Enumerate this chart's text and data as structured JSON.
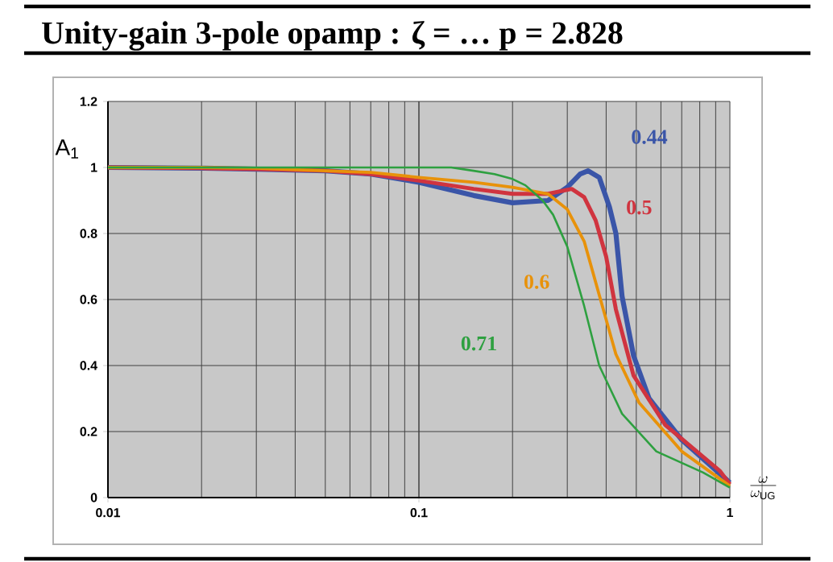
{
  "chart_data": {
    "type": "line",
    "title": "Unity-gain 3-pole opamp : ζ = …   p = 2.828",
    "ylabel": "A$_{1}$",
    "xlabel": "\\frac{\\omega}{\\omega_{\\mathrm{UG}}}",
    "log": "x",
    "grid": true,
    "xlim": [
      0.01,
      1
    ],
    "xticks": [
      0.01,
      0.1,
      1
    ],
    "ylim": [
      0,
      1.2
    ],
    "yticks": [
      0,
      0.2,
      0.4,
      0.6,
      0.8,
      1,
      1.2
    ],
    "series": [
      {
        "name": "0.44",
        "color": "#3a55a8",
        "x": [
          0.01,
          0.02,
          0.03,
          0.05,
          0.07,
          0.1,
          0.15,
          0.2,
          0.26,
          0.3,
          0.33,
          0.35,
          0.38,
          0.41,
          0.43,
          0.45,
          0.49,
          0.55,
          0.7,
          0.96,
          1
        ],
        "values": [
          1.0,
          0.998,
          0.995,
          0.99,
          0.98,
          0.955,
          0.915,
          0.893,
          0.9,
          0.94,
          0.98,
          0.99,
          0.97,
          0.88,
          0.8,
          0.61,
          0.43,
          0.3,
          0.175,
          0.06,
          0.045
        ]
      },
      {
        "name": "0.5",
        "color": "#d0343f",
        "x": [
          0.01,
          0.02,
          0.03,
          0.05,
          0.07,
          0.1,
          0.15,
          0.2,
          0.26,
          0.31,
          0.34,
          0.37,
          0.4,
          0.43,
          0.49,
          0.62,
          0.93,
          1
        ],
        "values": [
          1.0,
          0.998,
          0.995,
          0.99,
          0.98,
          0.96,
          0.935,
          0.92,
          0.92,
          0.935,
          0.91,
          0.84,
          0.73,
          0.57,
          0.37,
          0.22,
          0.08,
          0.04
        ]
      },
      {
        "name": "0.6",
        "color": "#e8920a",
        "x": [
          0.01,
          0.02,
          0.03,
          0.05,
          0.07,
          0.1,
          0.15,
          0.2,
          0.26,
          0.3,
          0.34,
          0.38,
          0.43,
          0.51,
          0.7,
          1
        ],
        "values": [
          1.0,
          1.0,
          0.998,
          0.99,
          0.985,
          0.97,
          0.955,
          0.94,
          0.92,
          0.873,
          0.776,
          0.614,
          0.434,
          0.288,
          0.14,
          0.035
        ]
      },
      {
        "name": "0.71",
        "color": "#2ea040",
        "x": [
          0.01,
          0.03,
          0.07,
          0.1,
          0.127,
          0.15,
          0.175,
          0.2,
          0.22,
          0.25,
          0.27,
          0.3,
          0.34,
          0.38,
          0.45,
          0.58,
          0.82,
          1
        ],
        "values": [
          1.0,
          1.0,
          1.0,
          1.0,
          1.0,
          0.99,
          0.98,
          0.965,
          0.946,
          0.9,
          0.857,
          0.76,
          0.58,
          0.4,
          0.254,
          0.14,
          0.076,
          0.03
        ]
      }
    ]
  }
}
